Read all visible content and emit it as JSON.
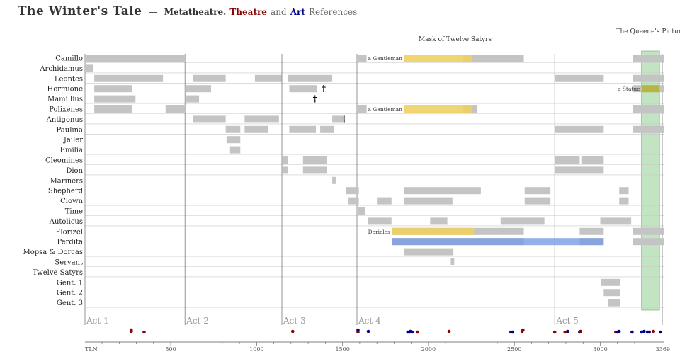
{
  "header": {
    "title": "The Winter's Tale",
    "dash": "—",
    "sub_meta": "Metatheatre.",
    "sub_theatre": "Theatre",
    "sub_and": "and",
    "sub_art": "Art",
    "sub_refs": "References"
  },
  "colors": {
    "presence": "#c4c4c4",
    "theatre_bar": "#f0d060",
    "art_bar": "#7a9be6",
    "statue_box": "#8fce8f",
    "theatre_dot": "#8b0000",
    "art_dot": "#00008b",
    "grid": "#c8c8c8",
    "act_line": "#666666",
    "act_label": "#9a9a9a"
  },
  "chart_data": {
    "type": "timeline",
    "xlabel": "TLN",
    "x_range": [
      1,
      3369
    ],
    "x_ticks": [
      {
        "value": 1,
        "label": "TLN"
      },
      {
        "value": 500,
        "label": "500"
      },
      {
        "value": 1000,
        "label": "1000"
      },
      {
        "value": 1500,
        "label": "1500"
      },
      {
        "value": 2000,
        "label": "2000"
      },
      {
        "value": 2500,
        "label": "2500"
      },
      {
        "value": 3000,
        "label": "3000"
      },
      {
        "value": 3369,
        "label": "3369"
      }
    ],
    "acts": [
      {
        "label": "Act 1",
        "start": 1
      },
      {
        "label": "Act 2",
        "start": 583
      },
      {
        "label": "Act 3",
        "start": 1147
      },
      {
        "label": "Act 4",
        "start": 1584
      },
      {
        "label": "Act 5",
        "start": 2735
      }
    ],
    "characters": [
      "Camillo",
      "Archidamus",
      "Leontes",
      "Hermione",
      "Mamillius",
      "Polixenes",
      "Antigonus",
      "Paulina",
      "Jailer",
      "Emilia",
      "Cleomines",
      "Dion",
      "Mariners",
      "Shepherd",
      "Clown",
      "Time",
      "Autolicus",
      "Florizel",
      "Perdita",
      "Mopsa & Dorcas",
      "Servant",
      "Twelve Satyrs",
      "Gent. 1",
      "Gent. 2",
      "Gent. 3"
    ],
    "presence": [
      {
        "character": "Camillo",
        "ranges": [
          [
            1,
            583
          ],
          [
            1584,
            1640
          ],
          [
            2200,
            2555
          ],
          [
            3190,
            3369
          ]
        ]
      },
      {
        "character": "Archidamus",
        "ranges": [
          [
            1,
            50
          ]
        ]
      },
      {
        "character": "Leontes",
        "ranges": [
          [
            55,
            455
          ],
          [
            630,
            820
          ],
          [
            990,
            1145
          ],
          [
            1180,
            1440
          ],
          [
            2735,
            3020
          ],
          [
            3190,
            3369
          ]
        ]
      },
      {
        "character": "Hermione",
        "ranges": [
          [
            55,
            275
          ],
          [
            583,
            735
          ],
          [
            1190,
            1350
          ],
          [
            3190,
            3369
          ]
        ]
      },
      {
        "character": "Mamillius",
        "ranges": [
          [
            55,
            295
          ],
          [
            583,
            665
          ]
        ]
      },
      {
        "character": "Polixenes",
        "ranges": [
          [
            55,
            275
          ],
          [
            470,
            583
          ],
          [
            1584,
            1640
          ],
          [
            2200,
            2285
          ],
          [
            3190,
            3369
          ]
        ]
      },
      {
        "character": "Antigonus",
        "ranges": [
          [
            630,
            820
          ],
          [
            930,
            1130
          ],
          [
            1440,
            1510
          ]
        ]
      },
      {
        "character": "Paulina",
        "ranges": [
          [
            820,
            905
          ],
          [
            930,
            1065
          ],
          [
            1190,
            1345
          ],
          [
            1370,
            1450
          ],
          [
            2735,
            3020
          ],
          [
            3190,
            3369
          ]
        ]
      },
      {
        "character": "Jailer",
        "ranges": [
          [
            825,
            905
          ]
        ]
      },
      {
        "character": "Emilia",
        "ranges": [
          [
            845,
            905
          ]
        ]
      },
      {
        "character": "Cleomines",
        "ranges": [
          [
            1150,
            1180
          ],
          [
            1270,
            1410
          ],
          [
            2735,
            2880
          ],
          [
            2890,
            3020
          ]
        ]
      },
      {
        "character": "Dion",
        "ranges": [
          [
            1150,
            1180
          ],
          [
            1270,
            1410
          ],
          [
            2735,
            3020
          ]
        ]
      },
      {
        "character": "Mariners",
        "ranges": [
          [
            1440,
            1460
          ]
        ]
      },
      {
        "character": "Shepherd",
        "ranges": [
          [
            1520,
            1595
          ],
          [
            1860,
            2305
          ],
          [
            2560,
            2710
          ],
          [
            3110,
            3165
          ]
        ]
      },
      {
        "character": "Clown",
        "ranges": [
          [
            1535,
            1595
          ],
          [
            1700,
            1785
          ],
          [
            1860,
            2140
          ],
          [
            2560,
            2710
          ],
          [
            3110,
            3165
          ]
        ]
      },
      {
        "character": "Time",
        "ranges": [
          [
            1590,
            1630
          ]
        ]
      },
      {
        "character": "Autolicus",
        "ranges": [
          [
            1650,
            1785
          ],
          [
            2010,
            2110
          ],
          [
            2420,
            2675
          ],
          [
            3000,
            3180
          ]
        ]
      },
      {
        "character": "Florizel",
        "ranges": [
          [
            1790,
            2555
          ],
          [
            2880,
            3020
          ],
          [
            3190,
            3369
          ]
        ]
      },
      {
        "character": "Perdita",
        "ranges": [
          [
            1790,
            2555
          ],
          [
            2880,
            3020
          ],
          [
            3190,
            3369
          ]
        ]
      },
      {
        "character": "Mopsa & Dorcas",
        "ranges": [
          [
            1860,
            2145
          ]
        ]
      },
      {
        "character": "Servant",
        "ranges": [
          [
            2130,
            2150
          ]
        ]
      },
      {
        "character": "Twelve Satyrs",
        "ranges": []
      },
      {
        "character": "Gent. 1",
        "ranges": [
          [
            3005,
            3115
          ]
        ]
      },
      {
        "character": "Gent. 2",
        "ranges": [
          [
            3020,
            3115
          ]
        ]
      },
      {
        "character": "Gent. 3",
        "ranges": [
          [
            3045,
            3115
          ]
        ]
      }
    ],
    "deaths": [
      {
        "character": "Hermione",
        "tln": 1390,
        "symbol": "†"
      },
      {
        "character": "Mamillius",
        "tln": 1340,
        "symbol": "†"
      },
      {
        "character": "Antigonus",
        "tln": 1510,
        "symbol": "†"
      }
    ],
    "theatre_bars": [
      {
        "character": "Camillo",
        "start": 1860,
        "end": 2255,
        "label": "a Gentleman"
      },
      {
        "character": "Polixenes",
        "start": 1860,
        "end": 2255,
        "label": "a Gentleman"
      },
      {
        "character": "Florizel",
        "start": 1790,
        "end": 2265,
        "label": "Doricles"
      }
    ],
    "art_bars": [
      {
        "character": "Perdita",
        "start": 1790,
        "end": 3020
      }
    ],
    "statue_bar": {
      "character": "Hermione",
      "start": 3240,
      "end": 3345,
      "label": "a Statue"
    },
    "events": [
      {
        "label": "Mask of Twelve Satyrs",
        "tln": 2155
      },
      {
        "label": "The Queene's Picture",
        "start": 3240,
        "end": 3345
      }
    ],
    "references": [
      {
        "tln": 270,
        "kind": "theatre"
      },
      {
        "tln": 270,
        "kind": "theatre"
      },
      {
        "tln": 345,
        "kind": "theatre"
      },
      {
        "tln": 1210,
        "kind": "theatre"
      },
      {
        "tln": 1590,
        "kind": "theatre"
      },
      {
        "tln": 1590,
        "kind": "art"
      },
      {
        "tln": 1650,
        "kind": "art"
      },
      {
        "tln": 1880,
        "kind": "art"
      },
      {
        "tln": 1890,
        "kind": "art"
      },
      {
        "tln": 1895,
        "kind": "art"
      },
      {
        "tln": 1905,
        "kind": "art"
      },
      {
        "tln": 1935,
        "kind": "theatre"
      },
      {
        "tln": 2120,
        "kind": "theatre"
      },
      {
        "tln": 2480,
        "kind": "art"
      },
      {
        "tln": 2490,
        "kind": "art"
      },
      {
        "tln": 2545,
        "kind": "theatre"
      },
      {
        "tln": 2550,
        "kind": "theatre"
      },
      {
        "tln": 2735,
        "kind": "theatre"
      },
      {
        "tln": 2810,
        "kind": "art"
      },
      {
        "tln": 2795,
        "kind": "theatre"
      },
      {
        "tln": 2880,
        "kind": "art"
      },
      {
        "tln": 2885,
        "kind": "theatre"
      },
      {
        "tln": 3090,
        "kind": "theatre"
      },
      {
        "tln": 3100,
        "kind": "art"
      },
      {
        "tln": 3110,
        "kind": "art"
      },
      {
        "tln": 3185,
        "kind": "art"
      },
      {
        "tln": 3240,
        "kind": "art"
      },
      {
        "tln": 3255,
        "kind": "art"
      },
      {
        "tln": 3275,
        "kind": "art"
      },
      {
        "tln": 3285,
        "kind": "art"
      },
      {
        "tln": 3310,
        "kind": "theatre"
      },
      {
        "tln": 3350,
        "kind": "art"
      }
    ]
  }
}
